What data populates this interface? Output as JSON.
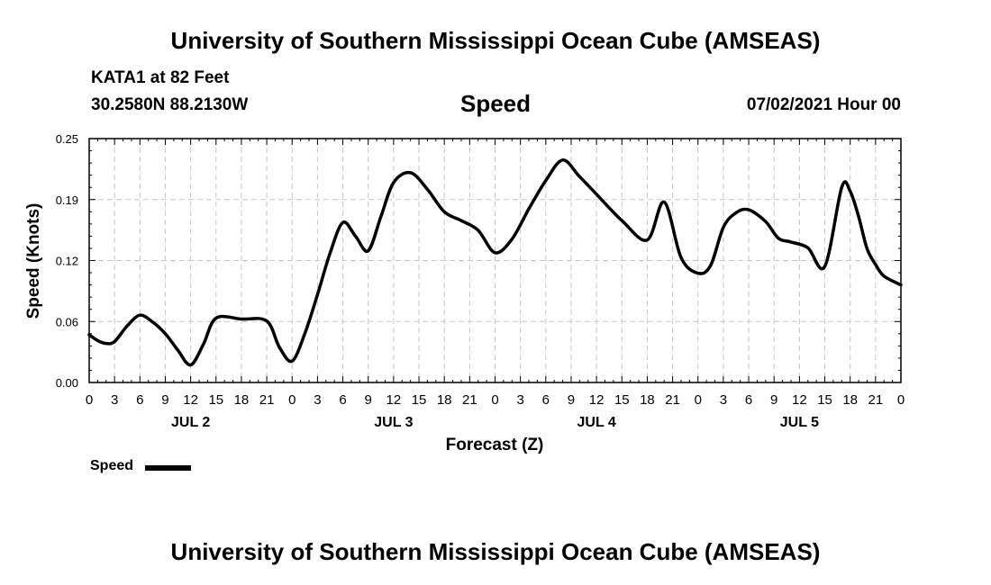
{
  "header": {
    "title": "University of Southern Mississippi Ocean Cube (AMSEAS)",
    "station": "KATA1 at 82 Feet",
    "coords": "30.2580N  88.2130W",
    "variable": "Speed",
    "date": "07/02/2021 Hour 00"
  },
  "footer": {
    "title": "University of Southern Mississippi Ocean Cube (AMSEAS)"
  },
  "legend": {
    "label": "Speed"
  },
  "chart_data": {
    "type": "line",
    "title": "Speed",
    "xlabel": "Forecast (Z)",
    "ylabel": "Speed (Knots)",
    "ylim": [
      0,
      0.25
    ],
    "yticks": [
      "0.00",
      "0.06",
      "0.12",
      "0.19",
      "0.25"
    ],
    "xlim": [
      0,
      96
    ],
    "xtick_labels": [
      "0",
      "3",
      "6",
      "9",
      "12",
      "15",
      "18",
      "21",
      "0",
      "3",
      "6",
      "9",
      "12",
      "15",
      "18",
      "21",
      "0",
      "3",
      "6",
      "9",
      "12",
      "15",
      "18",
      "21",
      "0",
      "3",
      "6",
      "9",
      "12",
      "15",
      "18",
      "21",
      "0"
    ],
    "day_labels": [
      "JUL 2",
      "JUL 3",
      "JUL 4",
      "JUL 5"
    ],
    "grid": true,
    "legend_position": "bottom-left",
    "series": [
      {
        "name": "Speed",
        "color": "#000000",
        "x": [
          0,
          1,
          2,
          3,
          4.5,
          6,
          7.5,
          9,
          10.5,
          12,
          13.5,
          15,
          18,
          21,
          22.5,
          24,
          25.5,
          27,
          28.5,
          30,
          31.5,
          33,
          34.5,
          36,
          38,
          40,
          42,
          44,
          46,
          48,
          50,
          52,
          54,
          56,
          58,
          60,
          63,
          66,
          68,
          70,
          72,
          73.5,
          75,
          76.5,
          78,
          80,
          81.5,
          83,
          85,
          87,
          89,
          90,
          91,
          92,
          93,
          94,
          96
        ],
        "values": [
          0.049,
          0.043,
          0.04,
          0.042,
          0.058,
          0.069,
          0.062,
          0.05,
          0.033,
          0.018,
          0.039,
          0.066,
          0.065,
          0.063,
          0.036,
          0.022,
          0.05,
          0.09,
          0.133,
          0.164,
          0.15,
          0.135,
          0.17,
          0.205,
          0.215,
          0.198,
          0.175,
          0.166,
          0.156,
          0.133,
          0.147,
          0.178,
          0.207,
          0.228,
          0.211,
          0.193,
          0.166,
          0.146,
          0.185,
          0.128,
          0.112,
          0.12,
          0.159,
          0.174,
          0.177,
          0.165,
          0.148,
          0.144,
          0.138,
          0.119,
          0.2,
          0.196,
          0.17,
          0.137,
          0.121,
          0.109,
          0.1
        ]
      }
    ]
  }
}
